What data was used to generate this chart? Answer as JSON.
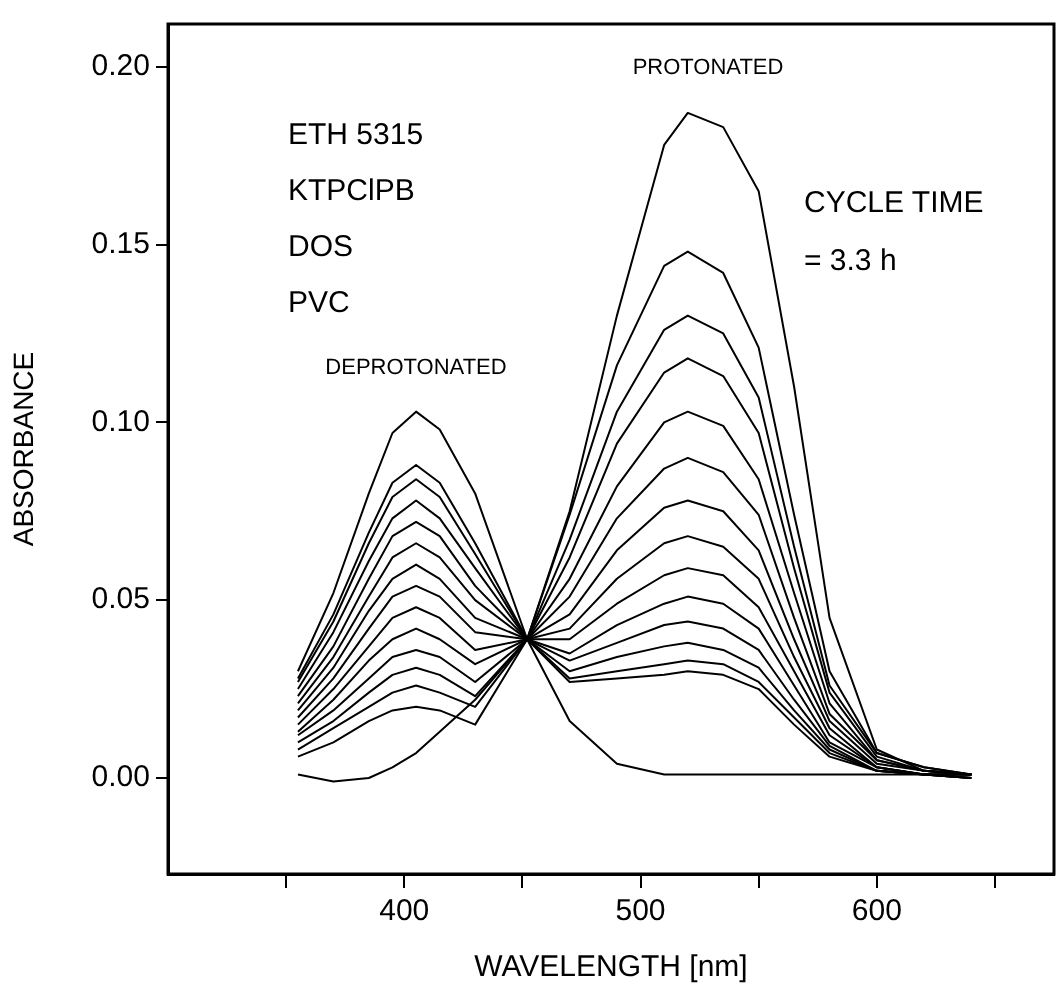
{
  "chart_data": {
    "type": "line",
    "xlabel": "WAVELENGTH [nm]",
    "ylabel": "ABSORBANCE",
    "x": [
      355,
      370,
      385,
      395,
      405,
      415,
      430,
      452,
      470,
      490,
      510,
      520,
      535,
      550,
      565,
      580,
      600,
      620,
      640
    ],
    "xlim": [
      300,
      675
    ],
    "xticks": [
      {
        "value": 350,
        "label": null
      },
      400,
      {
        "value": 450,
        "label": null
      },
      500,
      {
        "value": 550,
        "label": null
      },
      600,
      {
        "value": 650,
        "label": null
      }
    ],
    "ylim": [
      -0.027,
      0.212
    ],
    "yticks": [
      {
        "value": 0,
        "label": "0.00"
      },
      {
        "value": 0.05,
        "label": "0.05"
      },
      {
        "value": 0.1,
        "label": "0.10"
      },
      {
        "value": 0.15,
        "label": "0.15"
      },
      {
        "value": 0.2,
        "label": "0.20"
      }
    ],
    "grid": false,
    "legend": false,
    "marker": "none",
    "line_style": "solid",
    "series": [
      {
        "color": "#000000",
        "values": [
          0.001,
          -0.001,
          0.0,
          0.003,
          0.007,
          0.013,
          0.022,
          0.039,
          0.075,
          0.13,
          0.178,
          0.187,
          0.183,
          0.165,
          0.11,
          0.045,
          0.008,
          0.002,
          0.001
        ]
      },
      {
        "color": "#000000",
        "values": [
          0.03,
          0.052,
          0.08,
          0.097,
          0.103,
          0.098,
          0.08,
          0.039,
          0.016,
          0.004,
          0.001,
          0.001,
          0.001,
          0.001,
          0.001,
          0.001,
          0.001,
          0.001,
          0.001
        ]
      },
      {
        "color": "#000000",
        "values": [
          0.028,
          0.046,
          0.069,
          0.083,
          0.088,
          0.083,
          0.066,
          0.039,
          0.027,
          0.028,
          0.029,
          0.03,
          0.029,
          0.025,
          0.015,
          0.006,
          0.002,
          0.001,
          0.0
        ]
      },
      {
        "color": "#000000",
        "values": [
          0.027,
          0.044,
          0.066,
          0.079,
          0.084,
          0.079,
          0.063,
          0.039,
          0.028,
          0.03,
          0.032,
          0.033,
          0.032,
          0.027,
          0.017,
          0.007,
          0.002,
          0.001,
          0.0
        ]
      },
      {
        "color": "#000000",
        "values": [
          0.025,
          0.041,
          0.061,
          0.073,
          0.078,
          0.073,
          0.059,
          0.039,
          0.03,
          0.034,
          0.037,
          0.038,
          0.036,
          0.031,
          0.019,
          0.008,
          0.002,
          0.001,
          0.0
        ]
      },
      {
        "color": "#000000",
        "values": [
          0.023,
          0.037,
          0.056,
          0.068,
          0.072,
          0.068,
          0.054,
          0.039,
          0.033,
          0.038,
          0.043,
          0.044,
          0.042,
          0.036,
          0.022,
          0.009,
          0.002,
          0.001,
          0.0
        ]
      },
      {
        "color": "#000000",
        "values": [
          0.021,
          0.034,
          0.051,
          0.062,
          0.066,
          0.062,
          0.05,
          0.039,
          0.035,
          0.043,
          0.049,
          0.051,
          0.049,
          0.042,
          0.026,
          0.01,
          0.003,
          0.001,
          0.001
        ]
      },
      {
        "color": "#000000",
        "values": [
          0.019,
          0.031,
          0.047,
          0.056,
          0.06,
          0.056,
          0.045,
          0.039,
          0.039,
          0.049,
          0.057,
          0.059,
          0.057,
          0.048,
          0.03,
          0.012,
          0.003,
          0.001,
          0.001
        ]
      },
      {
        "color": "#000000",
        "values": [
          0.017,
          0.028,
          0.042,
          0.051,
          0.054,
          0.051,
          0.041,
          0.039,
          0.042,
          0.056,
          0.066,
          0.068,
          0.065,
          0.056,
          0.034,
          0.014,
          0.003,
          0.001,
          0.001
        ]
      },
      {
        "color": "#000000",
        "values": [
          0.015,
          0.025,
          0.037,
          0.045,
          0.048,
          0.045,
          0.036,
          0.039,
          0.046,
          0.064,
          0.076,
          0.078,
          0.075,
          0.064,
          0.039,
          0.016,
          0.004,
          0.002,
          0.001
        ]
      },
      {
        "color": "#000000",
        "values": [
          0.013,
          0.022,
          0.033,
          0.039,
          0.042,
          0.039,
          0.032,
          0.039,
          0.051,
          0.073,
          0.087,
          0.09,
          0.086,
          0.074,
          0.045,
          0.018,
          0.005,
          0.002,
          0.001
        ]
      },
      {
        "color": "#000000",
        "values": [
          0.012,
          0.019,
          0.028,
          0.034,
          0.036,
          0.034,
          0.027,
          0.039,
          0.056,
          0.082,
          0.1,
          0.103,
          0.099,
          0.084,
          0.052,
          0.021,
          0.005,
          0.002,
          0.001
        ]
      },
      {
        "color": "#000000",
        "values": [
          0.01,
          0.016,
          0.024,
          0.029,
          0.031,
          0.029,
          0.023,
          0.039,
          0.062,
          0.094,
          0.114,
          0.118,
          0.113,
          0.097,
          0.059,
          0.024,
          0.006,
          0.002,
          0.001
        ]
      },
      {
        "color": "#000000",
        "values": [
          0.008,
          0.014,
          0.02,
          0.024,
          0.026,
          0.024,
          0.02,
          0.039,
          0.067,
          0.103,
          0.126,
          0.13,
          0.125,
          0.107,
          0.065,
          0.026,
          0.007,
          0.003,
          0.001
        ]
      },
      {
        "color": "#000000",
        "values": [
          0.006,
          0.01,
          0.016,
          0.019,
          0.02,
          0.019,
          0.015,
          0.039,
          0.074,
          0.116,
          0.144,
          0.148,
          0.142,
          0.121,
          0.074,
          0.03,
          0.007,
          0.003,
          0.001
        ]
      }
    ],
    "annotations": [
      "ETH 5315",
      "KTPClPB",
      "DOS",
      "PVC",
      "CYCLE TIME",
      "= 3.3 h",
      "DEPROTONATED",
      "PROTONATED"
    ]
  }
}
